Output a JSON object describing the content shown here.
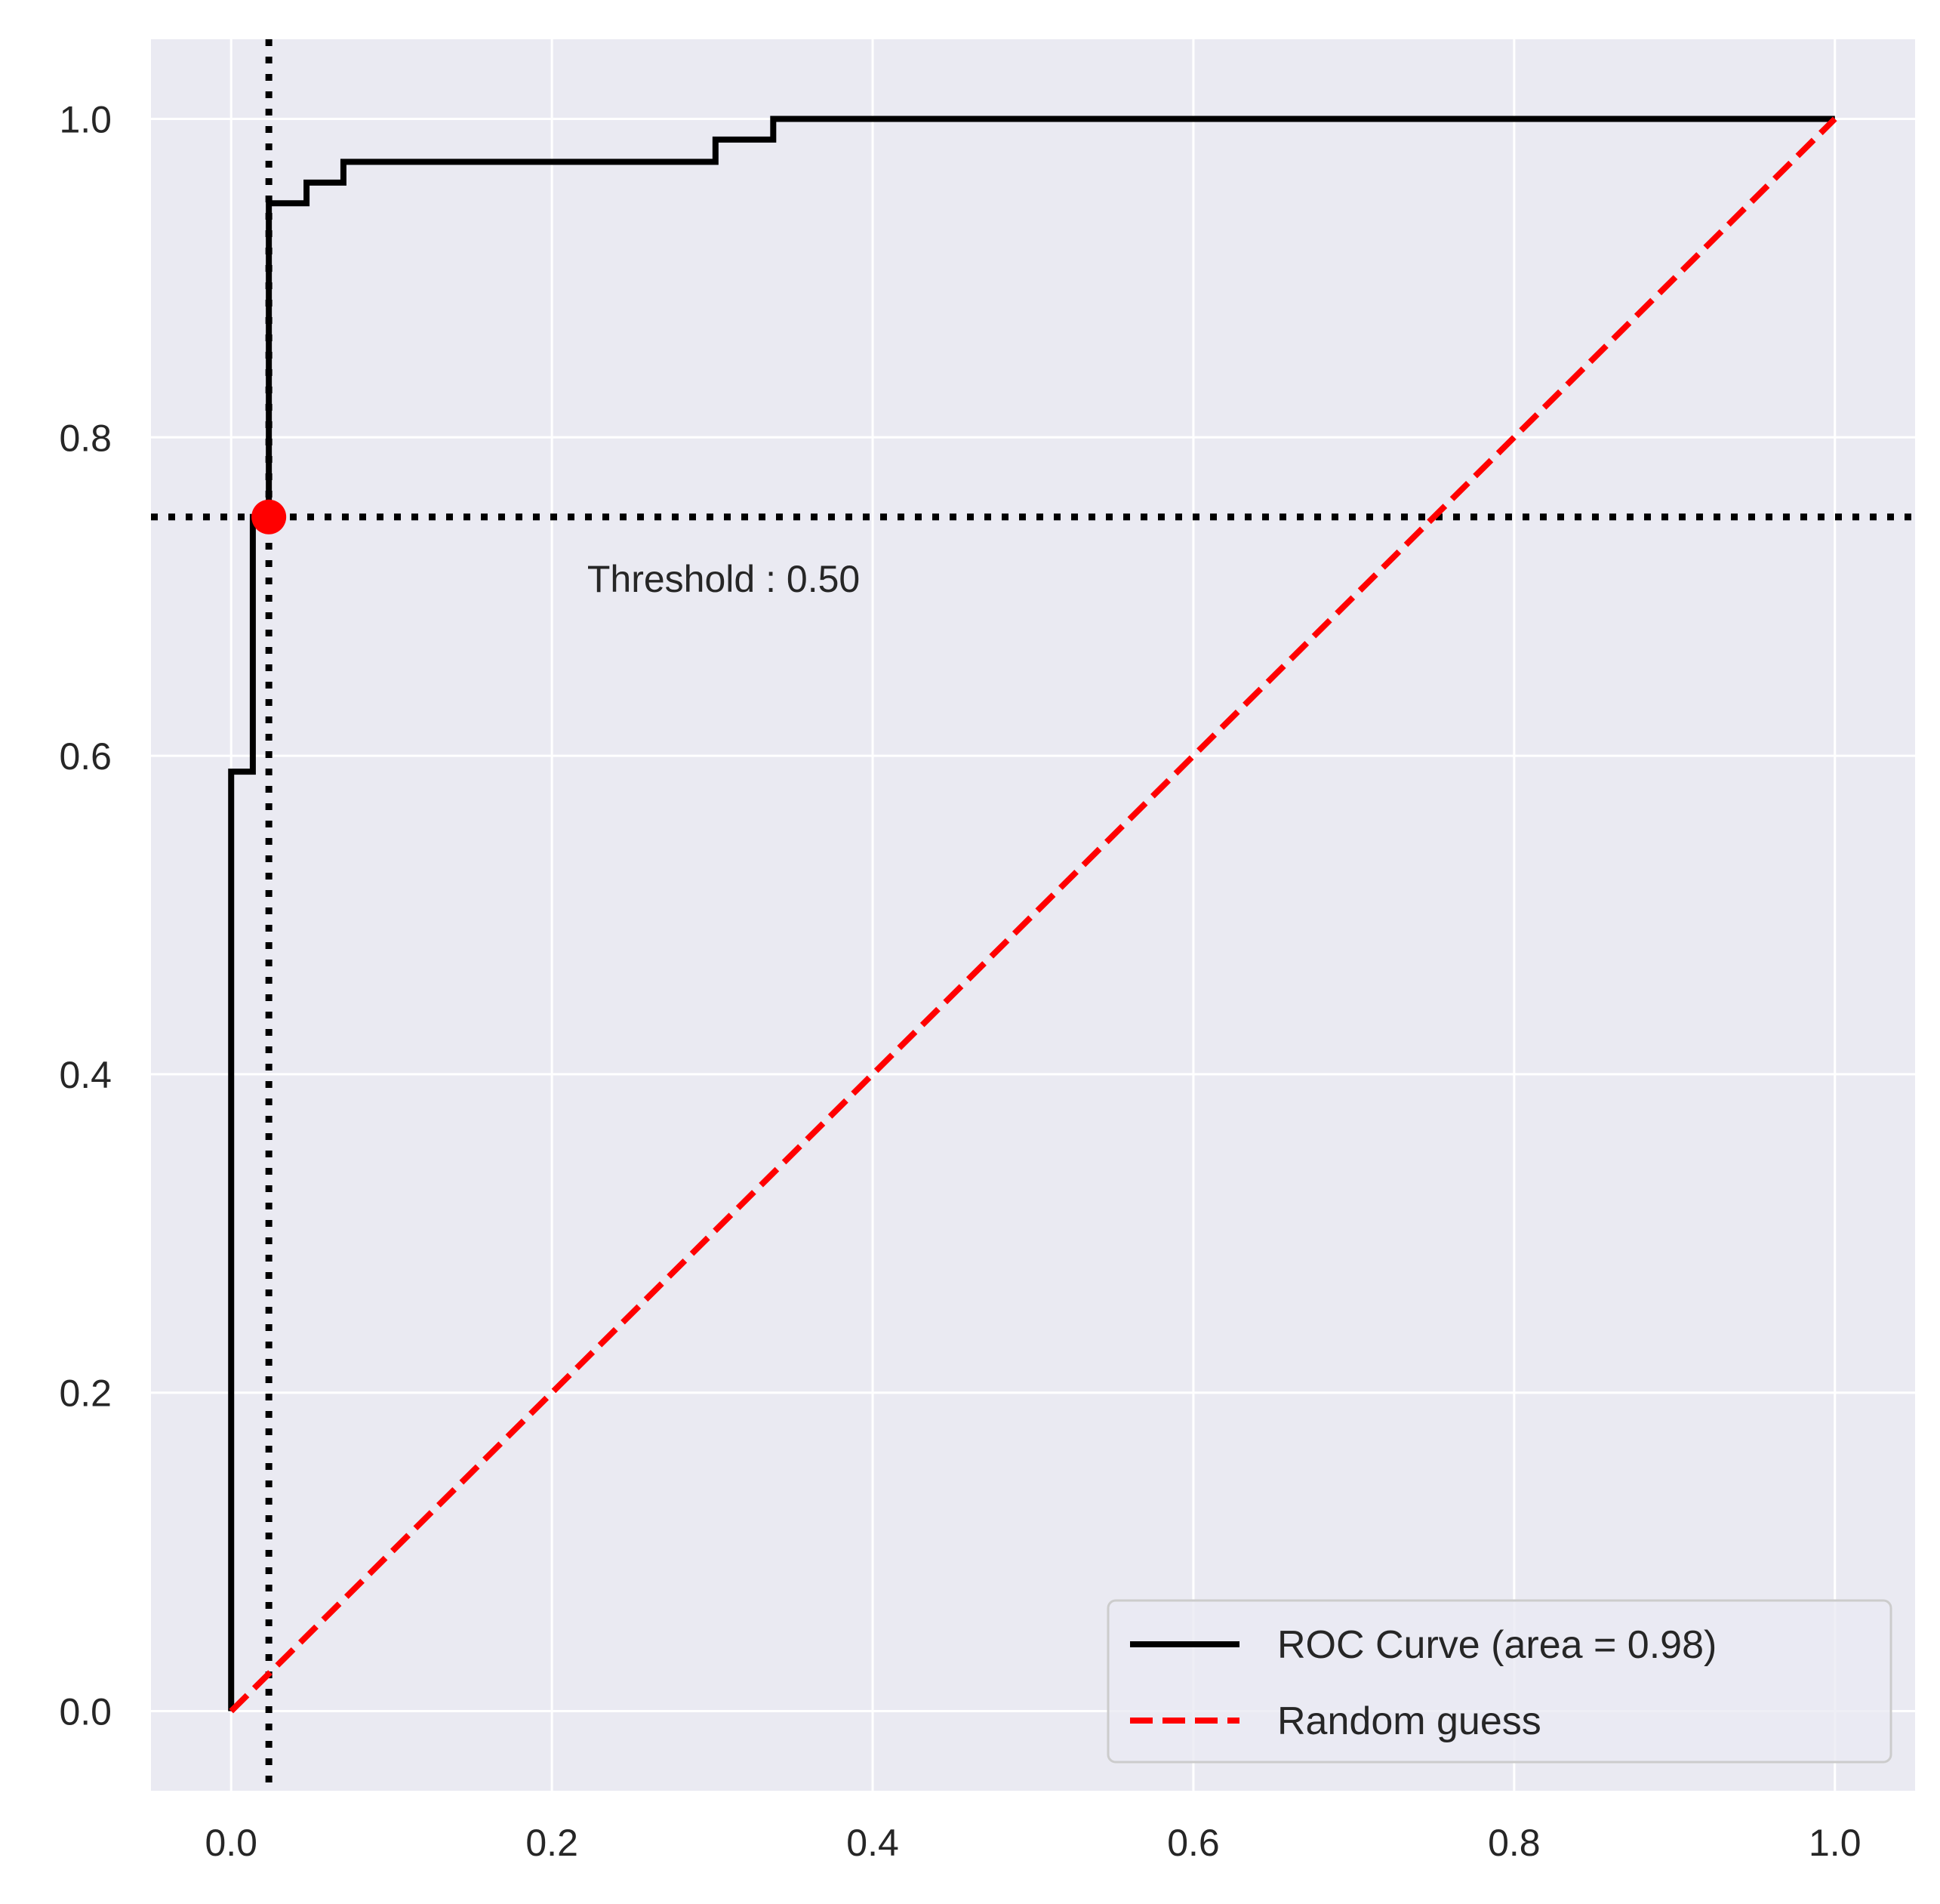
{
  "chart_data": {
    "type": "line",
    "title": "",
    "xlabel": "",
    "ylabel": "",
    "xlim": [
      -0.05,
      1.05
    ],
    "ylim": [
      -0.05,
      1.05
    ],
    "xticks": [
      0.0,
      0.2,
      0.4,
      0.6,
      0.8,
      1.0
    ],
    "yticks": [
      0.0,
      0.2,
      0.4,
      0.6,
      0.8,
      1.0
    ],
    "xtick_labels": [
      "0.0",
      "0.2",
      "0.4",
      "0.6",
      "0.8",
      "1.0"
    ],
    "ytick_labels": [
      "0.0",
      "0.2",
      "0.4",
      "0.6",
      "0.8",
      "1.0"
    ],
    "grid": true,
    "legend_position": "lower-right",
    "series": [
      {
        "name": "ROC Curve (area = 0.98)",
        "style": "solid",
        "color": "#000000",
        "x": [
          0.0,
          0.0,
          0.0,
          0.0135,
          0.0135,
          0.0235,
          0.0235,
          0.047,
          0.047,
          0.07,
          0.07,
          0.302,
          0.302,
          0.338,
          0.338,
          1.0
        ],
        "y": [
          0.0,
          0.59,
          0.59,
          0.59,
          0.75,
          0.75,
          0.947,
          0.947,
          0.96,
          0.96,
          0.973,
          0.973,
          0.987,
          0.987,
          1.0,
          1.0
        ]
      },
      {
        "name": "Random guess",
        "style": "dashed",
        "color": "#ff0000",
        "x": [
          0.0,
          1.0
        ],
        "y": [
          0.0,
          1.0
        ]
      }
    ],
    "reference_lines": {
      "vertical_x": 0.0235,
      "horizontal_y": 0.75,
      "style": "dotted",
      "color": "#000000"
    },
    "marker": {
      "x": 0.0235,
      "y": 0.75,
      "color": "#ff0000"
    },
    "annotation": {
      "text": "Threshold : 0.50",
      "x": 0.222,
      "y": 0.703
    }
  },
  "colors": {
    "plot_background": "#eaeaf2",
    "grid": "#ffffff",
    "roc_line": "#000000",
    "random_line": "#ff0000",
    "reference_lines": "#000000",
    "marker": "#ff0000"
  }
}
